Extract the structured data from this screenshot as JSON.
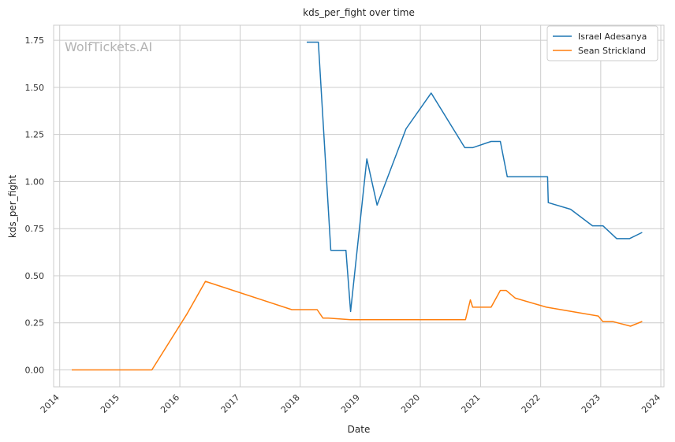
{
  "chart_data": {
    "type": "line",
    "title": "kds_per_fight over time",
    "xlabel": "Date",
    "ylabel": "kds_per_fight",
    "watermark": "WolfTickets.AI",
    "xlim": [
      "2013-11-25",
      "2024-01-20"
    ],
    "ylim": [
      -0.09,
      1.83
    ],
    "x_ticks": [
      "2014",
      "2015",
      "2016",
      "2017",
      "2018",
      "2019",
      "2020",
      "2021",
      "2022",
      "2023",
      "2024"
    ],
    "y_ticks": [
      "0.00",
      "0.25",
      "0.50",
      "0.75",
      "1.00",
      "1.25",
      "1.50",
      "1.75"
    ],
    "grid": true,
    "legend_position": "top-right",
    "series": [
      {
        "name": "Israel Adesanya",
        "color": "#1f77b4",
        "points": [
          [
            "2018-02-10",
            1.74
          ],
          [
            "2018-04-21",
            1.74
          ],
          [
            "2018-07-06",
            0.635
          ],
          [
            "2018-10-06",
            0.635
          ],
          [
            "2018-11-03",
            0.31
          ],
          [
            "2019-02-10",
            1.12
          ],
          [
            "2019-04-13",
            0.875
          ],
          [
            "2019-10-06",
            1.28
          ],
          [
            "2020-03-07",
            1.47
          ],
          [
            "2020-09-27",
            1.18
          ],
          [
            "2020-11-14",
            1.18
          ],
          [
            "2021-03-06",
            1.213
          ],
          [
            "2021-05-01",
            1.213
          ],
          [
            "2021-06-12",
            1.025
          ],
          [
            "2022-02-12",
            1.025
          ],
          [
            "2022-02-16",
            0.888
          ],
          [
            "2022-07-02",
            0.853
          ],
          [
            "2022-11-12",
            0.765
          ],
          [
            "2023-01-14",
            0.765
          ],
          [
            "2023-04-08",
            0.697
          ],
          [
            "2023-06-24",
            0.697
          ],
          [
            "2023-09-10",
            0.73
          ]
        ]
      },
      {
        "name": "Sean Strickland",
        "color": "#ff7f0e",
        "points": [
          [
            "2014-03-15",
            0.0
          ],
          [
            "2015-07-15",
            0.0
          ],
          [
            "2016-02-15",
            0.3
          ],
          [
            "2016-06-04",
            0.47
          ],
          [
            "2017-11-11",
            0.32
          ],
          [
            "2018-04-14",
            0.32
          ],
          [
            "2018-05-19",
            0.275
          ],
          [
            "2018-06-20",
            0.275
          ],
          [
            "2018-11-03",
            0.267
          ],
          [
            "2020-10-01",
            0.267
          ],
          [
            "2020-10-31",
            0.372
          ],
          [
            "2020-11-14",
            0.333
          ],
          [
            "2021-03-06",
            0.333
          ],
          [
            "2021-05-01",
            0.422
          ],
          [
            "2021-06-05",
            0.422
          ],
          [
            "2021-07-31",
            0.381
          ],
          [
            "2022-02-05",
            0.333
          ],
          [
            "2022-07-02",
            0.311
          ],
          [
            "2022-12-17",
            0.286
          ],
          [
            "2023-01-14",
            0.256
          ],
          [
            "2023-03-18",
            0.256
          ],
          [
            "2023-07-01",
            0.232
          ],
          [
            "2023-09-10",
            0.257
          ]
        ]
      }
    ]
  }
}
